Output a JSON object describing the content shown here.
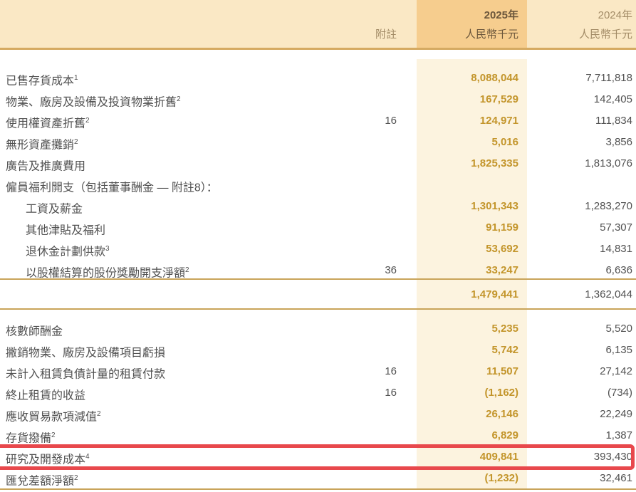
{
  "header": {
    "note_label": "附註",
    "col_2025": {
      "year": "2025年",
      "unit": "人民幣千元"
    },
    "col_2024": {
      "year": "2024年",
      "unit": "人民幣千元"
    }
  },
  "table": {
    "rows_top": [
      {
        "label": "已售存貨成本",
        "sup": "1",
        "note": "",
        "v2025": "8,088,044",
        "v2024": "7,711,818",
        "indent": false
      },
      {
        "label": "物業、廠房及設備及投資物業折舊",
        "sup": "2",
        "note": "",
        "v2025": "167,529",
        "v2024": "142,405",
        "indent": false
      },
      {
        "label": "使用權資產折舊",
        "sup": "2",
        "note": "16",
        "v2025": "124,971",
        "v2024": "111,834",
        "indent": false
      },
      {
        "label": "無形資產攤銷",
        "sup": "2",
        "note": "",
        "v2025": "5,016",
        "v2024": "3,856",
        "indent": false
      },
      {
        "label": "廣告及推廣費用",
        "sup": "",
        "note": "",
        "v2025": "1,825,335",
        "v2024": "1,813,076",
        "indent": false
      },
      {
        "label": "僱員福利開支（包括董事酬金 — 附註8）：",
        "sup": "",
        "note": "",
        "v2025": "",
        "v2024": "",
        "indent": false
      },
      {
        "label": "工資及薪金",
        "sup": "",
        "note": "",
        "v2025": "1,301,343",
        "v2024": "1,283,270",
        "indent": true
      },
      {
        "label": "其他津貼及福利",
        "sup": "",
        "note": "",
        "v2025": "91,159",
        "v2024": "57,307",
        "indent": true
      },
      {
        "label": "退休金計劃供款",
        "sup": "3",
        "note": "",
        "v2025": "53,692",
        "v2024": "14,831",
        "indent": true
      },
      {
        "label": "以股權結算的股份獎勵開支淨額",
        "sup": "2",
        "note": "36",
        "v2025": "33,247",
        "v2024": "6,636",
        "indent": true
      }
    ],
    "subtotal": {
      "v2025": "1,479,441",
      "v2024": "1,362,044"
    },
    "rows_bottom": [
      {
        "label": "核數師酬金",
        "sup": "",
        "note": "",
        "v2025": "5,235",
        "v2024": "5,520",
        "indent": false
      },
      {
        "label": "撇銷物業、廠房及設備項目虧損",
        "sup": "",
        "note": "",
        "v2025": "5,742",
        "v2024": "6,135",
        "indent": false
      },
      {
        "label": "未計入租賃負債計量的租賃付款",
        "sup": "",
        "note": "16",
        "v2025": "11,507",
        "v2024": "27,142",
        "indent": false
      },
      {
        "label": "終止租賃的收益",
        "sup": "",
        "note": "16",
        "v2025": "(1,162)",
        "v2024": "(734)",
        "indent": false
      },
      {
        "label": "應收貿易款項減值",
        "sup": "2",
        "note": "",
        "v2025": "26,146",
        "v2024": "22,249",
        "indent": false
      },
      {
        "label": "存貨撥備",
        "sup": "2",
        "note": "",
        "v2025": "6,829",
        "v2024": "1,387",
        "indent": false
      },
      {
        "label": "研究及開發成本",
        "sup": "4",
        "note": "",
        "v2025": "409,841",
        "v2024": "393,430",
        "indent": false,
        "highlighted": true
      },
      {
        "label": "匯兌差額淨額",
        "sup": "2",
        "note": "",
        "v2025": "(1,232)",
        "v2024": "32,461",
        "indent": false
      }
    ]
  },
  "colors": {
    "header_bg": "#FAE8C5",
    "header_2025_bg": "#F6CD8E",
    "stripe_bg": "#FCF3DF",
    "header_rule": "#D5AA62",
    "divider": "#C9A45A",
    "value_2025": "#C3952B",
    "head_2025": "#6B563B",
    "muted_head": "#A28B66",
    "label_color": "#515151",
    "highlight_red": "#E8484C"
  }
}
